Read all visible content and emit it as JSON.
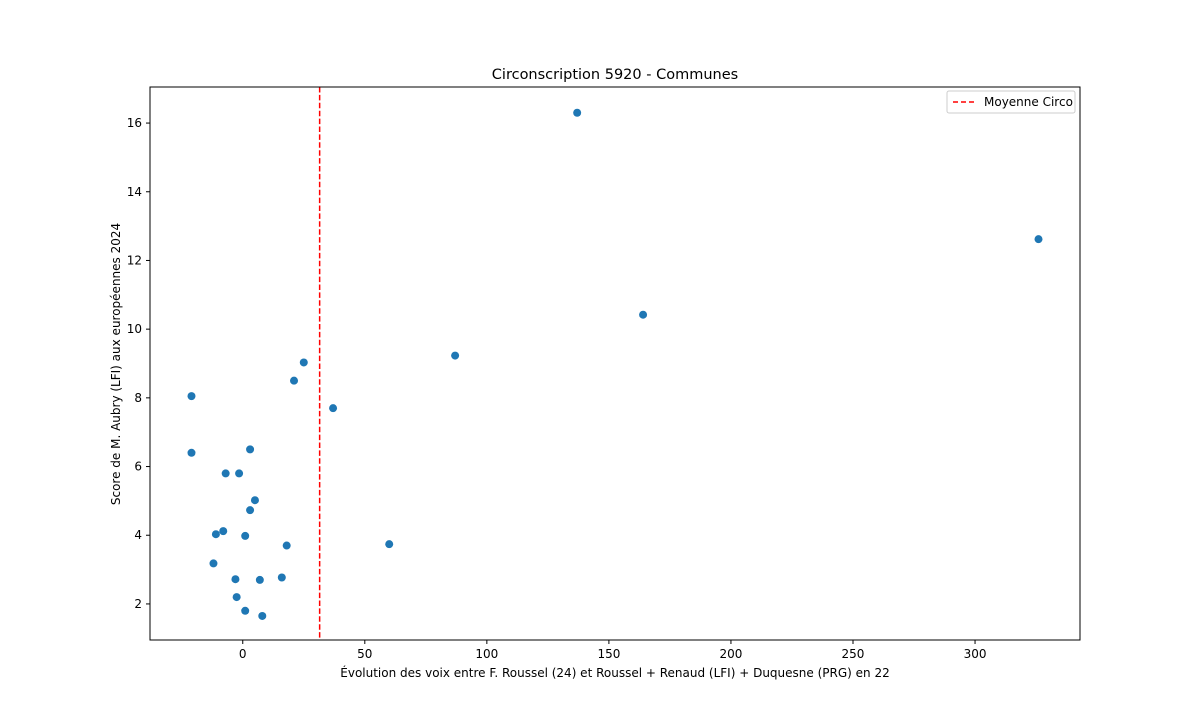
{
  "chart_data": {
    "type": "scatter",
    "title": "Circonscription 5920 - Communes",
    "xlabel": "Évolution des voix entre F. Roussel (24) et Roussel + Renaud (LFI) + Duquesne (PRG) en 22",
    "ylabel": "Score de M. Aubry (LFI) aux européennes 2024",
    "xlim": [
      -38,
      343
    ],
    "ylim": [
      0.95,
      17.05
    ],
    "xticks": [
      0,
      50,
      100,
      150,
      200,
      250,
      300
    ],
    "yticks": [
      2,
      4,
      6,
      8,
      10,
      12,
      14,
      16
    ],
    "grid": false,
    "point_color": "#1f77b4",
    "points": [
      {
        "x": -21,
        "y": 8.05
      },
      {
        "x": -21,
        "y": 6.4
      },
      {
        "x": -7,
        "y": 5.8
      },
      {
        "x": -1.5,
        "y": 5.8
      },
      {
        "x": -8,
        "y": 4.12
      },
      {
        "x": -11,
        "y": 4.03
      },
      {
        "x": -12,
        "y": 3.18
      },
      {
        "x": -3,
        "y": 2.72
      },
      {
        "x": -2.5,
        "y": 2.2
      },
      {
        "x": 1,
        "y": 1.8
      },
      {
        "x": 1,
        "y": 3.98
      },
      {
        "x": 3,
        "y": 6.5
      },
      {
        "x": 3,
        "y": 4.73
      },
      {
        "x": 5,
        "y": 5.02
      },
      {
        "x": 7,
        "y": 2.7
      },
      {
        "x": 8,
        "y": 1.65
      },
      {
        "x": 16,
        "y": 2.77
      },
      {
        "x": 18,
        "y": 3.7
      },
      {
        "x": 21,
        "y": 8.5
      },
      {
        "x": 25,
        "y": 9.03
      },
      {
        "x": 37,
        "y": 7.7
      },
      {
        "x": 60,
        "y": 3.74
      },
      {
        "x": 87,
        "y": 9.23
      },
      {
        "x": 137,
        "y": 16.3
      },
      {
        "x": 164,
        "y": 10.42
      },
      {
        "x": 326,
        "y": 12.62
      }
    ],
    "reference_line": {
      "orientation": "vertical",
      "x": 31.5,
      "label": "Moyenne Circo",
      "color": "#ff0000",
      "style": "dashed"
    },
    "legend": {
      "position": "top-right",
      "entries": [
        "Moyenne Circo"
      ]
    }
  }
}
